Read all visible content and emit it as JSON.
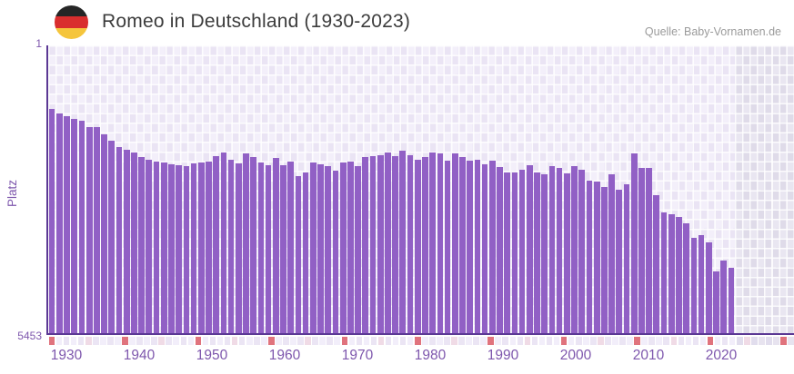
{
  "header": {
    "title": "Romeo in Deutschland (1930-2023)",
    "source": "Quelle: Baby-Vornamen.de"
  },
  "y_axis": {
    "label": "Platz",
    "max_tick": "1",
    "min_tick": "5453"
  },
  "x_axis": {
    "ticks": [
      "1930",
      "1940",
      "1950",
      "1960",
      "1970",
      "1980",
      "1990",
      "2000",
      "2010",
      "2020"
    ]
  },
  "chart_data": {
    "type": "bar",
    "title": "Romeo in Deutschland (1930-2023)",
    "ylabel": "Platz",
    "ylim": [
      1,
      5453
    ],
    "y_axis_inverted": true,
    "note_axis": "bars show yearly rank (Platz) of the name Romeo; rank 1 is best (top), bars extend down to rank 5453",
    "first_year": 1930,
    "last_data_year": 2021,
    "no_data_years": [
      2022,
      2023
    ],
    "values": [
      1180,
      1270,
      1320,
      1360,
      1410,
      1520,
      1530,
      1660,
      1780,
      1910,
      1950,
      2000,
      2100,
      2140,
      2180,
      2190,
      2230,
      2250,
      2270,
      2220,
      2200,
      2180,
      2080,
      2000,
      2150,
      2210,
      2020,
      2090,
      2190,
      2250,
      2120,
      2250,
      2180,
      2460,
      2380,
      2190,
      2240,
      2260,
      2350,
      2190,
      2180,
      2260,
      2090,
      2080,
      2060,
      2000,
      2080,
      1970,
      2060,
      2140,
      2090,
      2000,
      2030,
      2160,
      2020,
      2100,
      2160,
      2150,
      2240,
      2170,
      2290,
      2380,
      2380,
      2340,
      2250,
      2380,
      2430,
      2270,
      2310,
      2410,
      2270,
      2330,
      2540,
      2560,
      2670,
      2430,
      2710,
      2610,
      2030,
      2310,
      2310,
      2820,
      3150,
      3190,
      3240,
      3350,
      3630,
      3590,
      3720,
      4280,
      4070,
      4200
    ]
  },
  "colors": {
    "bar": "#9160c5",
    "axis_line": "#5b3894",
    "tick_text": "#7e57ad",
    "title_text": "#3c3c3c",
    "source_text": "#9b9b9b",
    "grid_cell_light": "#f3effa",
    "grid_cell_dark": "#eae4f4",
    "nodata_cell_light": "#e9e6f1",
    "nodata_cell_dark": "#dfdbe9",
    "strip_decade_red": "#e0737d",
    "strip_halfdecade_pink": "#f0dbe6",
    "strip_cell_light": "#f2eefa",
    "strip_cell_dark": "#ebe5f4",
    "flag_black": "#262626",
    "flag_red": "#d92e2e",
    "flag_gold": "#f5c53c"
  }
}
